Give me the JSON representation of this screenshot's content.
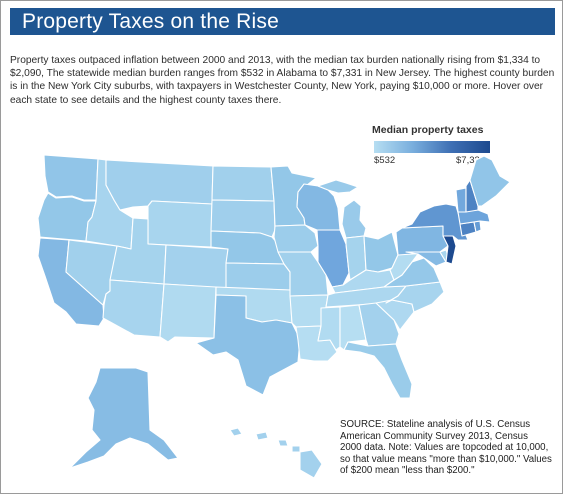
{
  "title": "Property Taxes on the Rise",
  "intro": "Property taxes outpaced inflation between 2000 and 2013, with the median tax burden nationally rising from $1,334 to $2,090, The statewide median burden ranges from $532 in Alabama to $7,331 in New Jersey. The highest county burden is in the New York City suburbs, with taxpayers in Westchester County, New York, paying $10,000 or more. Hover over each state to see details and the highest county taxes there.",
  "legend": {
    "title": "Median property taxes",
    "min_label": "$532",
    "max_label": "$7,331",
    "min_value": 532,
    "max_value": 7331
  },
  "source": "SOURCE: Stateline analysis of U.S. Census American Community Survey 2013, Census 2000 data. Note: Values are topcoded at 10,000, so that value means \"more than $10,000.\" Values of $200 mean \"less than $200.\"",
  "colors": {
    "title_bg": "#1e5591",
    "scale_low": "#b6def2",
    "scale_mid": "#79aedd",
    "scale_high": "#1d4a8f",
    "border": "#ffffff"
  },
  "states": [
    {
      "name": "WA",
      "value": 2600
    },
    {
      "name": "OR",
      "value": 2500
    },
    {
      "name": "CA",
      "value": 3300
    },
    {
      "name": "NV",
      "value": 1700
    },
    {
      "name": "ID",
      "value": 1400
    },
    {
      "name": "MT",
      "value": 1800
    },
    {
      "name": "WY",
      "value": 1300
    },
    {
      "name": "UT",
      "value": 1500
    },
    {
      "name": "AZ",
      "value": 1400
    },
    {
      "name": "CO",
      "value": 1600
    },
    {
      "name": "NM",
      "value": 900
    },
    {
      "name": "ND",
      "value": 1700
    },
    {
      "name": "SD",
      "value": 1800
    },
    {
      "name": "NE",
      "value": 2500
    },
    {
      "name": "KS",
      "value": 2000
    },
    {
      "name": "OK",
      "value": 900
    },
    {
      "name": "TX",
      "value": 2900
    },
    {
      "name": "MN",
      "value": 2500
    },
    {
      "name": "IA",
      "value": 2000
    },
    {
      "name": "MO",
      "value": 1700
    },
    {
      "name": "AR",
      "value": 700
    },
    {
      "name": "LA",
      "value": 600
    },
    {
      "name": "WI",
      "value": 3300
    },
    {
      "name": "IL",
      "value": 4200
    },
    {
      "name": "MI",
      "value": 2200
    },
    {
      "name": "IN",
      "value": 1500
    },
    {
      "name": "OH",
      "value": 2500
    },
    {
      "name": "KY",
      "value": 1000
    },
    {
      "name": "TN",
      "value": 1100
    },
    {
      "name": "MS",
      "value": 800
    },
    {
      "name": "AL",
      "value": 532
    },
    {
      "name": "GA",
      "value": 1600
    },
    {
      "name": "FL",
      "value": 2100
    },
    {
      "name": "SC",
      "value": 1000
    },
    {
      "name": "NC",
      "value": 1400
    },
    {
      "name": "VA",
      "value": 2400
    },
    {
      "name": "WV",
      "value": 700
    },
    {
      "name": "PA",
      "value": 3400
    },
    {
      "name": "NY",
      "value": 4800
    },
    {
      "name": "VT",
      "value": 4100
    },
    {
      "name": "NH",
      "value": 5500
    },
    {
      "name": "ME",
      "value": 2600
    },
    {
      "name": "MA",
      "value": 4300
    },
    {
      "name": "CT",
      "value": 5500
    },
    {
      "name": "RI",
      "value": 4600
    },
    {
      "name": "NJ",
      "value": 7331
    },
    {
      "name": "DE",
      "value": 1300
    },
    {
      "name": "MD",
      "value": 3200
    },
    {
      "name": "AK",
      "value": 3100
    },
    {
      "name": "HI",
      "value": 1600
    }
  ]
}
